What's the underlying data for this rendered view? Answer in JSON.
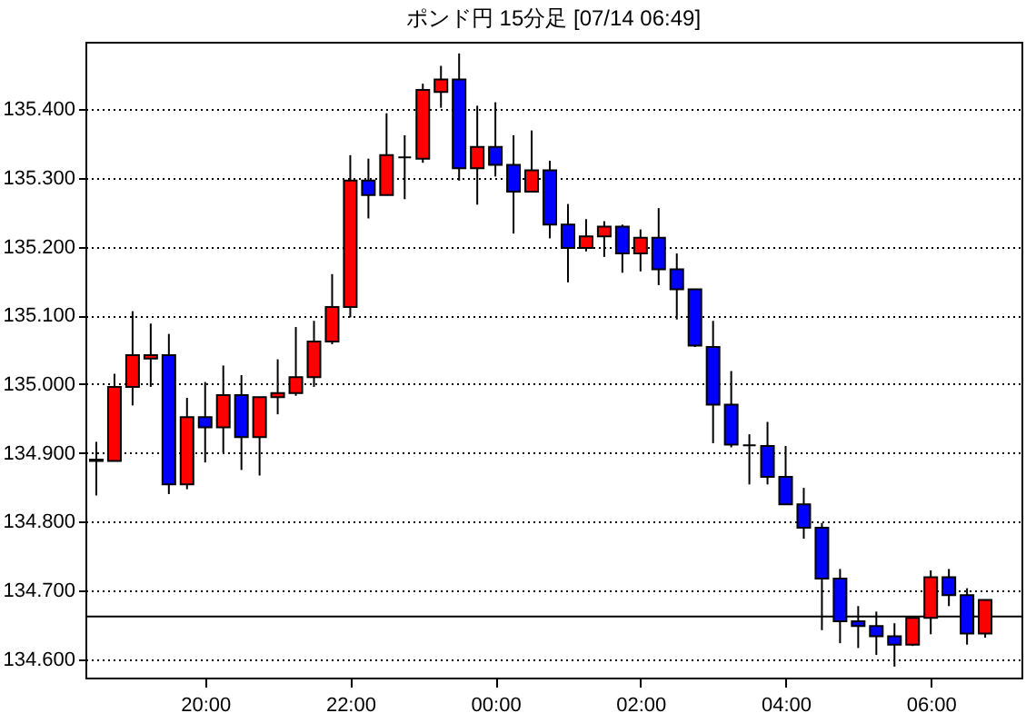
{
  "chart_data": {
    "type": "candlestick",
    "title": "ポンド円 15分足 [07/14 06:49]",
    "x": [
      "--07-13T18:30",
      "--07-13T18:45",
      "--07-13T19:00",
      "--07-13T19:15",
      "--07-13T19:30",
      "--07-13T19:45",
      "--07-13T20:00",
      "--07-13T20:15",
      "--07-13T20:30",
      "--07-13T20:45",
      "--07-13T21:00",
      "--07-13T21:15",
      "--07-13T21:30",
      "--07-13T21:45",
      "--07-13T22:00",
      "--07-13T22:15",
      "--07-13T22:30",
      "--07-13T22:45",
      "--07-13T23:00",
      "--07-13T23:15",
      "--07-13T23:30",
      "--07-13T23:45",
      "--07-14T00:00",
      "--07-14T00:15",
      "--07-14T00:30",
      "--07-14T00:45",
      "--07-14T01:00",
      "--07-14T01:15",
      "--07-14T01:30",
      "--07-14T01:45",
      "--07-14T02:00",
      "--07-14T02:15",
      "--07-14T02:30",
      "--07-14T02:45",
      "--07-14T03:00",
      "--07-14T03:15",
      "--07-14T03:30",
      "--07-14T03:45",
      "--07-14T04:00",
      "--07-14T04:15",
      "--07-14T04:30",
      "--07-14T04:45",
      "--07-14T05:00",
      "--07-14T05:15",
      "--07-14T05:30",
      "--07-14T05:45",
      "--07-14T06:00",
      "--07-14T06:15",
      "--07-14T06:30",
      "--07-14T06:45"
    ],
    "ohlc": [
      [
        134.888,
        134.916,
        134.838,
        134.89
      ],
      [
        134.888,
        135.015,
        134.888,
        134.996
      ],
      [
        134.996,
        135.106,
        134.969,
        135.042
      ],
      [
        135.037,
        135.088,
        134.996,
        135.042
      ],
      [
        135.042,
        135.073,
        134.84,
        134.854
      ],
      [
        134.854,
        134.98,
        134.847,
        134.952
      ],
      [
        134.952,
        135.003,
        134.886,
        134.937
      ],
      [
        134.937,
        135.027,
        134.9,
        134.984
      ],
      [
        134.984,
        135.013,
        134.875,
        134.923
      ],
      [
        134.923,
        134.981,
        134.867,
        134.981
      ],
      [
        134.981,
        135.036,
        134.956,
        134.987
      ],
      [
        134.987,
        135.083,
        134.983,
        135.01
      ],
      [
        135.01,
        135.092,
        134.996,
        135.062
      ],
      [
        135.062,
        135.16,
        135.058,
        135.112
      ],
      [
        135.112,
        135.333,
        135.097,
        135.296
      ],
      [
        135.296,
        135.328,
        135.241,
        135.275
      ],
      [
        135.275,
        135.394,
        135.275,
        135.333
      ],
      [
        135.33,
        135.362,
        135.269,
        135.33
      ],
      [
        135.328,
        135.437,
        135.322,
        135.428
      ],
      [
        135.425,
        135.463,
        135.402,
        135.443
      ],
      [
        135.443,
        135.481,
        135.296,
        135.314
      ],
      [
        135.314,
        135.405,
        135.261,
        135.345
      ],
      [
        135.345,
        135.41,
        135.302,
        135.319
      ],
      [
        135.319,
        135.362,
        135.219,
        135.28
      ],
      [
        135.28,
        135.369,
        135.28,
        135.311
      ],
      [
        135.311,
        135.325,
        135.212,
        135.232
      ],
      [
        135.232,
        135.262,
        135.148,
        135.198
      ],
      [
        135.198,
        135.24,
        135.193,
        135.215
      ],
      [
        135.215,
        135.237,
        135.185,
        135.229
      ],
      [
        135.229,
        135.232,
        135.162,
        135.19
      ],
      [
        135.19,
        135.225,
        135.164,
        135.213
      ],
      [
        135.213,
        135.256,
        135.144,
        135.167
      ],
      [
        135.167,
        135.19,
        135.094,
        135.138
      ],
      [
        135.138,
        135.138,
        135.054,
        135.056
      ],
      [
        135.054,
        135.092,
        134.914,
        134.97
      ],
      [
        134.97,
        135.019,
        134.908,
        134.912
      ],
      [
        134.911,
        134.927,
        134.854,
        134.911
      ],
      [
        134.91,
        134.945,
        134.854,
        134.865
      ],
      [
        134.865,
        134.91,
        134.825,
        134.825
      ],
      [
        134.825,
        134.849,
        134.775,
        134.791
      ],
      [
        134.791,
        134.798,
        134.642,
        134.717
      ],
      [
        134.717,
        134.731,
        134.623,
        134.655
      ],
      [
        134.655,
        134.677,
        134.616,
        134.648
      ],
      [
        134.648,
        134.669,
        134.606,
        134.633
      ],
      [
        134.633,
        134.652,
        134.589,
        134.621
      ],
      [
        134.621,
        134.66,
        134.619,
        134.66
      ],
      [
        134.66,
        134.729,
        134.636,
        134.719
      ],
      [
        134.719,
        134.731,
        134.677,
        134.693
      ],
      [
        134.693,
        134.703,
        134.621,
        134.637
      ],
      [
        134.637,
        134.686,
        134.631,
        134.686
      ]
    ],
    "colors": [
      "#000000",
      "#ff0000",
      "#ff0000",
      "#ff0000",
      "#0000ff",
      "#ff0000",
      "#0000ff",
      "#ff0000",
      "#0000ff",
      "#ff0000",
      "#ff0000",
      "#ff0000",
      "#ff0000",
      "#ff0000",
      "#ff0000",
      "#0000ff",
      "#ff0000",
      "#000000",
      "#ff0000",
      "#ff0000",
      "#0000ff",
      "#ff0000",
      "#0000ff",
      "#0000ff",
      "#ff0000",
      "#0000ff",
      "#0000ff",
      "#ff0000",
      "#ff0000",
      "#0000ff",
      "#ff0000",
      "#0000ff",
      "#0000ff",
      "#0000ff",
      "#0000ff",
      "#0000ff",
      "#000000",
      "#0000ff",
      "#0000ff",
      "#0000ff",
      "#0000ff",
      "#0000ff",
      "#0000ff",
      "#0000ff",
      "#0000ff",
      "#ff0000",
      "#ff0000",
      "#0000ff",
      "#0000ff",
      "#ff0000"
    ],
    "xlim": [
      "--07-13T18:21",
      "--07-14T07:15"
    ],
    "xticks": [
      {
        "value": "--07-13T20:00",
        "label": "20:00"
      },
      {
        "value": "--07-13T22:00",
        "label": "22:00"
      },
      {
        "value": "--07-14T00:00",
        "label": "00:00"
      },
      {
        "value": "--07-14T02:00",
        "label": "02:00"
      },
      {
        "value": "--07-14T04:00",
        "label": "04:00"
      },
      {
        "value": "--07-14T06:00",
        "label": "06:00"
      }
    ],
    "ylim": [
      134.573,
      135.498
    ],
    "yticks": [
      {
        "value": 134.6,
        "label": "134.600"
      },
      {
        "value": 134.7,
        "label": "134.700"
      },
      {
        "value": 134.8,
        "label": "134.800"
      },
      {
        "value": 134.9,
        "label": "134.900"
      },
      {
        "value": 135.0,
        "label": "135.000"
      },
      {
        "value": 135.1,
        "label": "135.100"
      },
      {
        "value": 135.2,
        "label": "135.200"
      },
      {
        "value": 135.3,
        "label": "135.300"
      },
      {
        "value": 135.4,
        "label": "135.400"
      }
    ],
    "grid": "y",
    "ref_lines": [
      {
        "axis": "y",
        "value": 134.662,
        "color": "#000000"
      }
    ]
  }
}
